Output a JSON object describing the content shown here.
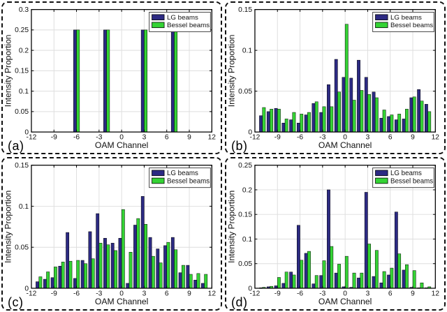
{
  "figure": {
    "xlabel": "OAM Channel",
    "ylabel": "Intensity Proportion",
    "legend": [
      "LG beams",
      "Bessel beams"
    ],
    "colors": {
      "lg": "#2C2A83",
      "bessel": "#34D334",
      "bar_edge": "#000000",
      "grid": "#DEDEDE",
      "axis": "#000000",
      "text": "#111111",
      "legend_border": "#444444",
      "panel_border": "#111111",
      "background": "#FFFFFF"
    }
  },
  "chart_data": [
    {
      "type": "bar",
      "panel_label": "(a)",
      "xlabel": "OAM Channel",
      "ylabel": "Intensity Proportion",
      "xlim": [
        -12,
        12
      ],
      "ylim": [
        0,
        0.3
      ],
      "xticks": [
        -12,
        -9,
        -6,
        -3,
        0,
        3,
        6,
        9,
        12
      ],
      "yticks": [
        0,
        0.05,
        0.1,
        0.15,
        0.2,
        0.25,
        0.3
      ],
      "grid": true,
      "legend_position": "top-right",
      "categories": [
        -6,
        -2,
        3,
        7
      ],
      "series": [
        {
          "name": "LG beams",
          "values": [
            0.25,
            0.25,
            0.25,
            0.25
          ]
        },
        {
          "name": "Bessel beams",
          "values": [
            0.25,
            0.25,
            0.25,
            0.25
          ]
        }
      ]
    },
    {
      "type": "bar",
      "panel_label": "(b)",
      "xlabel": "OAM Channel",
      "ylabel": "Intensity Proportion",
      "xlim": [
        -12,
        12
      ],
      "ylim": [
        0,
        0.15
      ],
      "xticks": [
        -12,
        -9,
        -6,
        -3,
        0,
        3,
        6,
        9,
        12
      ],
      "yticks": [
        0,
        0.05,
        0.1,
        0.15
      ],
      "grid": true,
      "legend_position": "top-right",
      "categories": [
        -11,
        -10,
        -9,
        -8,
        -7,
        -6,
        -5,
        -4,
        -3,
        -2,
        -1,
        0,
        1,
        2,
        3,
        4,
        5,
        6,
        7,
        8,
        9,
        10,
        11
      ],
      "series": [
        {
          "name": "LG beams",
          "values": [
            0.02,
            0.025,
            0.029,
            0.011,
            0.015,
            0.011,
            0.021,
            0.035,
            0.024,
            0.058,
            0.089,
            0.067,
            0.066,
            0.088,
            0.067,
            0.049,
            0.017,
            0.019,
            0.015,
            0.016,
            0.042,
            0.052,
            0.034
          ]
        },
        {
          "name": "Bessel beams",
          "values": [
            0.03,
            0.028,
            0.028,
            0.016,
            0.024,
            0.022,
            0.024,
            0.037,
            0.031,
            0.031,
            0.049,
            0.132,
            0.039,
            0.051,
            0.046,
            0.042,
            0.027,
            0.021,
            0.022,
            0.028,
            0.043,
            0.038,
            0.025
          ]
        }
      ]
    },
    {
      "type": "bar",
      "panel_label": "(c)",
      "xlabel": "OAM Channel",
      "ylabel": "Intensity Proportion",
      "xlim": [
        -12,
        12
      ],
      "ylim": [
        0,
        0.15
      ],
      "xticks": [
        -12,
        -9,
        -6,
        -3,
        0,
        3,
        6,
        9,
        12
      ],
      "yticks": [
        0,
        0.05,
        0.1,
        0.15
      ],
      "grid": true,
      "legend_position": "top-right",
      "categories": [
        -11,
        -10,
        -9,
        -8,
        -7,
        -6,
        -5,
        -4,
        -3,
        -2,
        -1,
        0,
        1,
        2,
        3,
        4,
        5,
        6,
        7,
        8,
        9,
        10,
        11
      ],
      "series": [
        {
          "name": "LG beams",
          "values": [
            0.008,
            0.011,
            0.013,
            0.027,
            0.068,
            0.012,
            0.034,
            0.069,
            0.091,
            0.061,
            0.055,
            0.061,
            0.006,
            0.077,
            0.112,
            0.062,
            0.048,
            0.052,
            0.062,
            0.019,
            0.028,
            0.01,
            0.006
          ]
        },
        {
          "name": "Bessel beams",
          "values": [
            0.014,
            0.02,
            0.026,
            0.032,
            0.033,
            0.034,
            0.03,
            0.036,
            0.055,
            0.053,
            0.046,
            0.096,
            0.044,
            0.085,
            0.078,
            0.039,
            0.031,
            0.056,
            0.047,
            0.028,
            0.017,
            0.018,
            0.017
          ]
        }
      ]
    },
    {
      "type": "bar",
      "panel_label": "(d)",
      "xlabel": "OAM Channel",
      "ylabel": "Intensity Proportion",
      "xlim": [
        -12,
        12
      ],
      "ylim": [
        0,
        0.25
      ],
      "xticks": [
        -12,
        -9,
        -6,
        -3,
        0,
        3,
        6,
        9,
        12
      ],
      "yticks": [
        0,
        0.05,
        0.1,
        0.15,
        0.2,
        0.25
      ],
      "grid": true,
      "legend_position": "top-right",
      "categories": [
        -11,
        -10,
        -9,
        -8,
        -7,
        -6,
        -5,
        -4,
        -3,
        -2,
        -1,
        0,
        1,
        2,
        3,
        4,
        5,
        6,
        7,
        8,
        9,
        10,
        11
      ],
      "series": [
        {
          "name": "LG beams",
          "values": [
            0.001,
            0.003,
            0.005,
            0.01,
            0.033,
            0.128,
            0.071,
            0.009,
            0.026,
            0.2,
            0.031,
            0.003,
            0.002,
            0.021,
            0.195,
            0.024,
            0.011,
            0.027,
            0.155,
            0.037,
            0.002,
            0.001,
            0.001
          ]
        },
        {
          "name": "Bessel beams",
          "values": [
            0.002,
            0.004,
            0.022,
            0.033,
            0.027,
            0.057,
            0.075,
            0.026,
            0.056,
            0.085,
            0.049,
            0.065,
            0.031,
            0.031,
            0.09,
            0.077,
            0.034,
            0.041,
            0.07,
            0.048,
            0.036,
            0.011,
            0.003
          ]
        }
      ]
    }
  ]
}
